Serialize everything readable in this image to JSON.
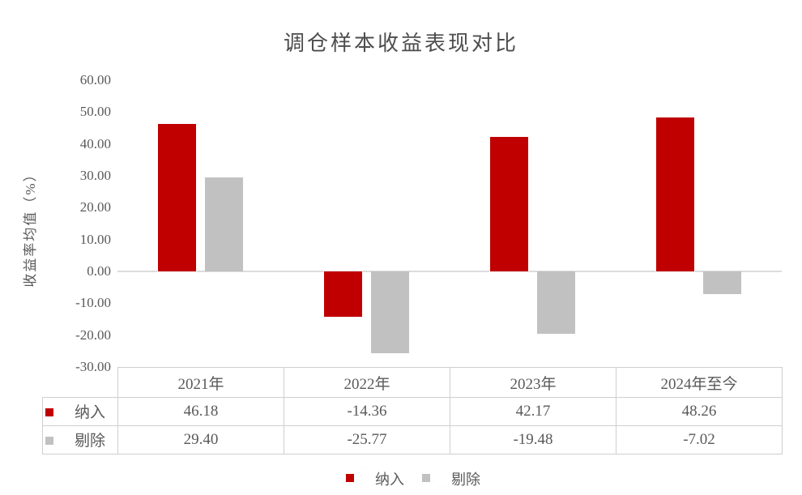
{
  "chart_data": {
    "type": "bar",
    "title": "调仓样本收益表现对比",
    "ylabel": "收益率均值（%）",
    "categories": [
      "2021年",
      "2022年",
      "2023年",
      "2024年至今"
    ],
    "series": [
      {
        "name": "纳入",
        "redacted_prefix": true,
        "color": "#c00000",
        "values": [
          46.18,
          -14.36,
          42.17,
          48.26
        ]
      },
      {
        "name": "剔除",
        "redacted_prefix": true,
        "color": "#c1c1c1",
        "values": [
          29.4,
          -25.77,
          -19.48,
          -7.02
        ]
      }
    ],
    "value_format_decimals": 2,
    "ylim": [
      -30,
      60
    ],
    "ytick_step": 10,
    "ytick_labels": [
      "60.00",
      "50.00",
      "40.00",
      "30.00",
      "20.00",
      "10.00",
      "0.00",
      "-10.00",
      "-20.00",
      "-30.00"
    ],
    "grid": false,
    "legend_position": "bottom"
  }
}
